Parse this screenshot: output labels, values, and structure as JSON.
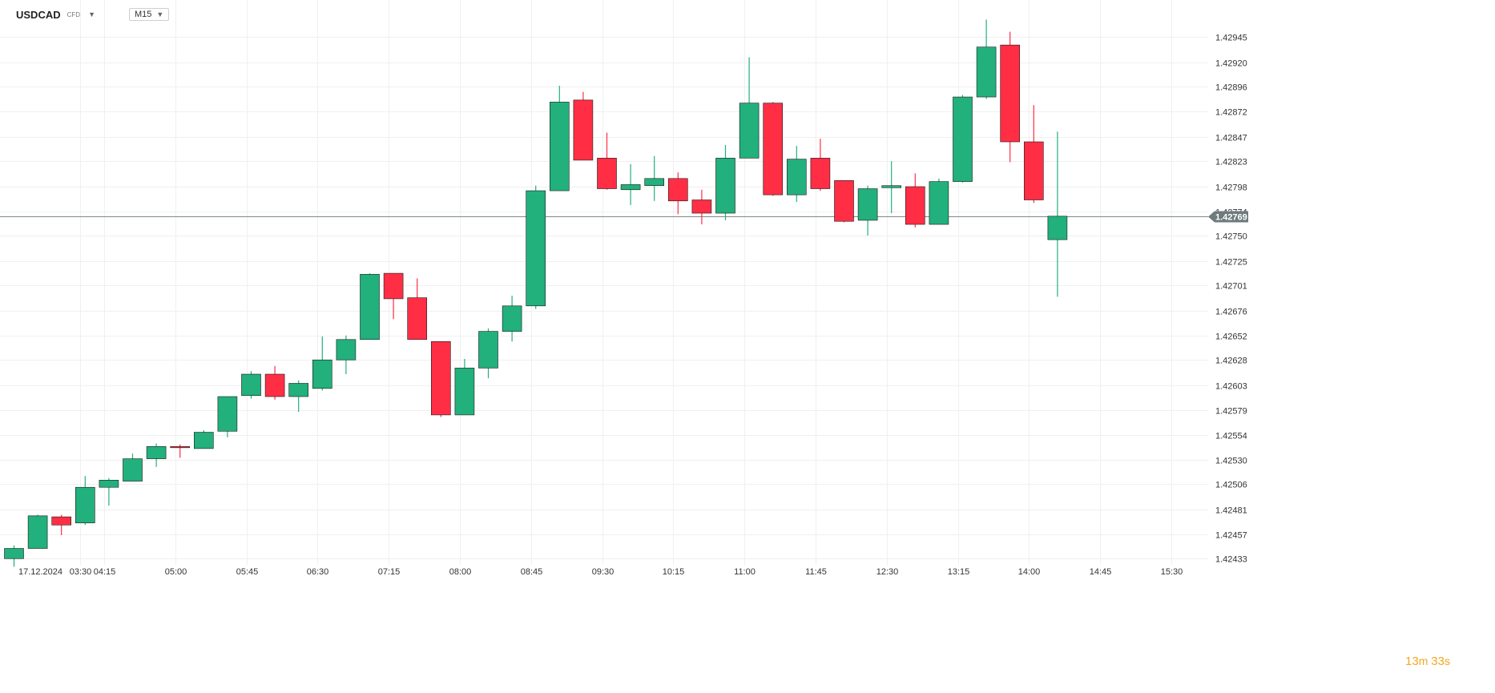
{
  "toolbar": {
    "symbol": "USDCAD",
    "instrument_type": "CFD",
    "symbol_dropdown_icon": "caret-down-icon",
    "timeframe": "M15",
    "timeframe_dropdown_icon": "caret-down-icon"
  },
  "countdown": {
    "minutes": "13",
    "minutes_unit": "m",
    "seconds": "33",
    "seconds_unit": "s"
  },
  "colors": {
    "up": "#22b07d",
    "down": "#ff2e45",
    "grid": "#f0f0f0",
    "price_line": "#7d8a8a",
    "price_tag": "#6d7b7b",
    "axis_text": "#333333",
    "countdown": "#f5a623"
  },
  "chart_data": {
    "type": "candlestick",
    "symbol": "USDCAD",
    "timeframe": "M15",
    "current_price": 1.42769,
    "current_price_label": "1.42769",
    "ylim": [
      1.4242,
      1.4296
    ],
    "y_tick_labels": [
      "1.42945",
      "1.42920",
      "1.42896",
      "1.42872",
      "1.42847",
      "1.42823",
      "1.42798",
      "1.42774",
      "1.42750",
      "1.42725",
      "1.42701",
      "1.42676",
      "1.42652",
      "1.42628",
      "1.42603",
      "1.42579",
      "1.42554",
      "1.42530",
      "1.42506",
      "1.42481",
      "1.42457",
      "1.42433"
    ],
    "y_tick_values": [
      1.42945,
      1.4292,
      1.42896,
      1.42872,
      1.42847,
      1.42823,
      1.42798,
      1.42774,
      1.4275,
      1.42725,
      1.42701,
      1.42676,
      1.42652,
      1.42628,
      1.42603,
      1.42579,
      1.42554,
      1.4253,
      1.42506,
      1.42481,
      1.42457,
      1.42433
    ],
    "x_tick_labels": [
      {
        "label": "17.12.2024",
        "bar": 1.1
      },
      {
        "label": "03:30",
        "bar": 2.8
      },
      {
        "label": "04:15",
        "bar": 3.8
      },
      {
        "label": "05:00",
        "bar": 6.8
      },
      {
        "label": "05:45",
        "bar": 9.8
      },
      {
        "label": "06:30",
        "bar": 12.8
      },
      {
        "label": "07:15",
        "bar": 15.8
      },
      {
        "label": "08:00",
        "bar": 18.8
      },
      {
        "label": "08:45",
        "bar": 21.8
      },
      {
        "label": "09:30",
        "bar": 24.8
      },
      {
        "label": "10:15",
        "bar": 27.8
      },
      {
        "label": "11:00",
        "bar": 30.8
      },
      {
        "label": "11:45",
        "bar": 33.8
      },
      {
        "label": "12:30",
        "bar": 36.8
      },
      {
        "label": "13:15",
        "bar": 39.8
      },
      {
        "label": "14:00",
        "bar": 42.8
      },
      {
        "label": "14:45",
        "bar": 45.8
      },
      {
        "label": "15:30",
        "bar": 48.8
      }
    ],
    "candles": [
      {
        "o": 1.42433,
        "h": 1.42446,
        "l": 1.42425,
        "c": 1.42443
      },
      {
        "o": 1.42443,
        "h": 1.42476,
        "l": 1.42443,
        "c": 1.42475
      },
      {
        "o": 1.42474,
        "h": 1.42476,
        "l": 1.42456,
        "c": 1.42466
      },
      {
        "o": 1.42468,
        "h": 1.42514,
        "l": 1.42466,
        "c": 1.42503
      },
      {
        "o": 1.42503,
        "h": 1.42512,
        "l": 1.42485,
        "c": 1.4251
      },
      {
        "o": 1.42509,
        "h": 1.42536,
        "l": 1.42509,
        "c": 1.42531
      },
      {
        "o": 1.42531,
        "h": 1.42546,
        "l": 1.42523,
        "c": 1.42543
      },
      {
        "o": 1.42543,
        "h": 1.42545,
        "l": 1.42532,
        "c": 1.42542
      },
      {
        "o": 1.42541,
        "h": 1.42559,
        "l": 1.42541,
        "c": 1.42557
      },
      {
        "o": 1.42558,
        "h": 1.42592,
        "l": 1.42552,
        "c": 1.42592
      },
      {
        "o": 1.42593,
        "h": 1.42617,
        "l": 1.4259,
        "c": 1.42614
      },
      {
        "o": 1.42614,
        "h": 1.42622,
        "l": 1.42589,
        "c": 1.42592
      },
      {
        "o": 1.42592,
        "h": 1.42608,
        "l": 1.42577,
        "c": 1.42605
      },
      {
        "o": 1.426,
        "h": 1.42651,
        "l": 1.42598,
        "c": 1.42628
      },
      {
        "o": 1.42628,
        "h": 1.42652,
        "l": 1.42614,
        "c": 1.42648
      },
      {
        "o": 1.42648,
        "h": 1.42713,
        "l": 1.42648,
        "c": 1.42712
      },
      {
        "o": 1.42713,
        "h": 1.42713,
        "l": 1.42668,
        "c": 1.42688
      },
      {
        "o": 1.42689,
        "h": 1.42708,
        "l": 1.42648,
        "c": 1.42648
      },
      {
        "o": 1.42646,
        "h": 1.42646,
        "l": 1.42572,
        "c": 1.42574
      },
      {
        "o": 1.42574,
        "h": 1.42629,
        "l": 1.42574,
        "c": 1.4262
      },
      {
        "o": 1.4262,
        "h": 1.42659,
        "l": 1.4261,
        "c": 1.42656
      },
      {
        "o": 1.42656,
        "h": 1.42691,
        "l": 1.42646,
        "c": 1.42681
      },
      {
        "o": 1.42681,
        "h": 1.42799,
        "l": 1.42678,
        "c": 1.42794
      },
      {
        "o": 1.42794,
        "h": 1.42897,
        "l": 1.42794,
        "c": 1.42881
      },
      {
        "o": 1.42883,
        "h": 1.42891,
        "l": 1.42824,
        "c": 1.42824
      },
      {
        "o": 1.42826,
        "h": 1.42851,
        "l": 1.42795,
        "c": 1.42796
      },
      {
        "o": 1.42795,
        "h": 1.4282,
        "l": 1.4278,
        "c": 1.428
      },
      {
        "o": 1.42799,
        "h": 1.42828,
        "l": 1.42784,
        "c": 1.42806
      },
      {
        "o": 1.42806,
        "h": 1.42812,
        "l": 1.42771,
        "c": 1.42784
      },
      {
        "o": 1.42785,
        "h": 1.42795,
        "l": 1.42761,
        "c": 1.42772
      },
      {
        "o": 1.42772,
        "h": 1.42839,
        "l": 1.42765,
        "c": 1.42826
      },
      {
        "o": 1.42826,
        "h": 1.42925,
        "l": 1.42826,
        "c": 1.4288
      },
      {
        "o": 1.4288,
        "h": 1.42881,
        "l": 1.42789,
        "c": 1.4279
      },
      {
        "o": 1.4279,
        "h": 1.42838,
        "l": 1.42783,
        "c": 1.42825
      },
      {
        "o": 1.42826,
        "h": 1.42845,
        "l": 1.42794,
        "c": 1.42796
      },
      {
        "o": 1.42804,
        "h": 1.42804,
        "l": 1.42763,
        "c": 1.42764
      },
      {
        "o": 1.42765,
        "h": 1.42799,
        "l": 1.4275,
        "c": 1.42796
      },
      {
        "o": 1.42797,
        "h": 1.42823,
        "l": 1.42772,
        "c": 1.42799
      },
      {
        "o": 1.42798,
        "h": 1.42811,
        "l": 1.42758,
        "c": 1.42761
      },
      {
        "o": 1.42761,
        "h": 1.42806,
        "l": 1.42761,
        "c": 1.42803
      },
      {
        "o": 1.42803,
        "h": 1.42888,
        "l": 1.42802,
        "c": 1.42886
      },
      {
        "o": 1.42886,
        "h": 1.42962,
        "l": 1.42884,
        "c": 1.42935
      },
      {
        "o": 1.42937,
        "h": 1.4295,
        "l": 1.42822,
        "c": 1.42842
      },
      {
        "o": 1.42842,
        "h": 1.42878,
        "l": 1.42782,
        "c": 1.42785
      },
      {
        "o": 1.42746,
        "h": 1.42852,
        "l": 1.4269,
        "c": 1.42769
      }
    ],
    "grid": true,
    "legend": "none"
  }
}
